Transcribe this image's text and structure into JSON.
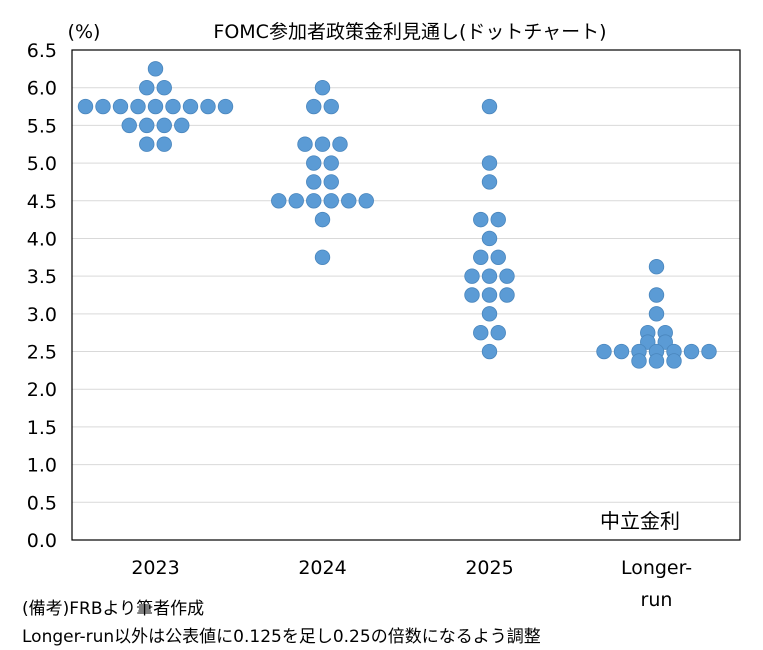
{
  "chart_data": {
    "type": "scatter",
    "title": "FOMC参加者政策金利見通し(ドットチャート)",
    "ylabel": "(%)",
    "ylim": [
      0.0,
      6.5
    ],
    "yticks": [
      "0.0",
      "0.5",
      "1.0",
      "1.5",
      "2.0",
      "2.5",
      "3.0",
      "3.5",
      "4.0",
      "4.5",
      "5.0",
      "5.5",
      "6.0",
      "6.5"
    ],
    "categories": [
      "2023",
      "2024",
      "2025",
      "Longer-\nrun"
    ],
    "grid": true,
    "annotation": "中立金利",
    "dot_color": "#5b9bd5",
    "groups": [
      {
        "category": "2023",
        "rows": [
          {
            "y": 6.25,
            "n": 1
          },
          {
            "y": 6.0,
            "n": 2
          },
          {
            "y": 5.75,
            "n": 9
          },
          {
            "y": 5.5,
            "n": 4
          },
          {
            "y": 5.25,
            "n": 2
          }
        ]
      },
      {
        "category": "2024",
        "rows": [
          {
            "y": 6.0,
            "n": 1
          },
          {
            "y": 5.75,
            "n": 2
          },
          {
            "y": 5.25,
            "n": 3
          },
          {
            "y": 5.0,
            "n": 2
          },
          {
            "y": 4.75,
            "n": 2
          },
          {
            "y": 4.5,
            "n": 6
          },
          {
            "y": 4.25,
            "n": 1
          },
          {
            "y": 3.75,
            "n": 1
          }
        ]
      },
      {
        "category": "2025",
        "rows": [
          {
            "y": 5.75,
            "n": 1
          },
          {
            "y": 5.0,
            "n": 1
          },
          {
            "y": 4.75,
            "n": 1
          },
          {
            "y": 4.25,
            "n": 2
          },
          {
            "y": 4.0,
            "n": 1
          },
          {
            "y": 3.75,
            "n": 2
          },
          {
            "y": 3.5,
            "n": 3
          },
          {
            "y": 3.25,
            "n": 3
          },
          {
            "y": 3.0,
            "n": 1
          },
          {
            "y": 2.75,
            "n": 2
          },
          {
            "y": 2.5,
            "n": 1
          }
        ]
      },
      {
        "category": "Longer-\nrun",
        "rows": [
          {
            "y": 3.625,
            "n": 1
          },
          {
            "y": 3.25,
            "n": 1
          },
          {
            "y": 3.0,
            "n": 1
          },
          {
            "y": 2.75,
            "n": 2
          },
          {
            "y": 2.625,
            "n": 2
          },
          {
            "y": 2.5,
            "n": 7
          },
          {
            "y": 2.375,
            "n": 3
          }
        ]
      }
    ]
  },
  "notes": {
    "source": "(備考)FRBより筆者作成",
    "adjustment": "Longer-run以外は公表値に0.125を足し0.25の倍数になるよう調整"
  }
}
